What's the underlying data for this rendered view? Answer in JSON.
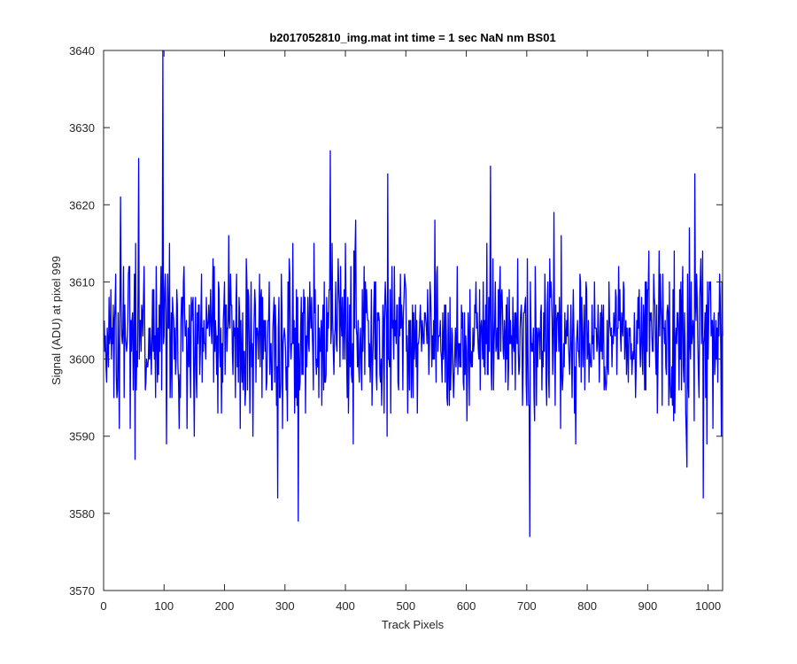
{
  "chart_data": {
    "type": "line",
    "title": "b2017052810_img.mat int time = 1 sec  NaN nm BS01",
    "xlabel": "Track Pixels",
    "ylabel": "Signal (ADU) at pixel 999",
    "xlim": [
      0,
      1024
    ],
    "ylim": [
      3570,
      3640
    ],
    "xticks": [
      0,
      100,
      200,
      300,
      400,
      500,
      600,
      700,
      800,
      900,
      1000
    ],
    "yticks": [
      3570,
      3580,
      3590,
      3600,
      3610,
      3620,
      3630,
      3640
    ],
    "grid": false,
    "series": [
      {
        "color": "#0000ff",
        "x_start": 1,
        "x_step": 1,
        "noise_model": {
          "mean": 3602.5,
          "std": 5.2,
          "seed": 2017
        },
        "notable_points": [
          {
            "x": 58,
            "y": 3626
          },
          {
            "x": 98,
            "y": 3640
          },
          {
            "x": 288,
            "y": 3582
          },
          {
            "x": 322,
            "y": 3579
          },
          {
            "x": 375,
            "y": 3627
          },
          {
            "x": 470,
            "y": 3624
          },
          {
            "x": 640,
            "y": 3625
          },
          {
            "x": 705,
            "y": 3577
          },
          {
            "x": 978,
            "y": 3624
          },
          {
            "x": 992,
            "y": 3582
          }
        ]
      }
    ]
  },
  "colors": {
    "line": "#0000ff",
    "axes": "#262626",
    "background": "#ffffff"
  }
}
